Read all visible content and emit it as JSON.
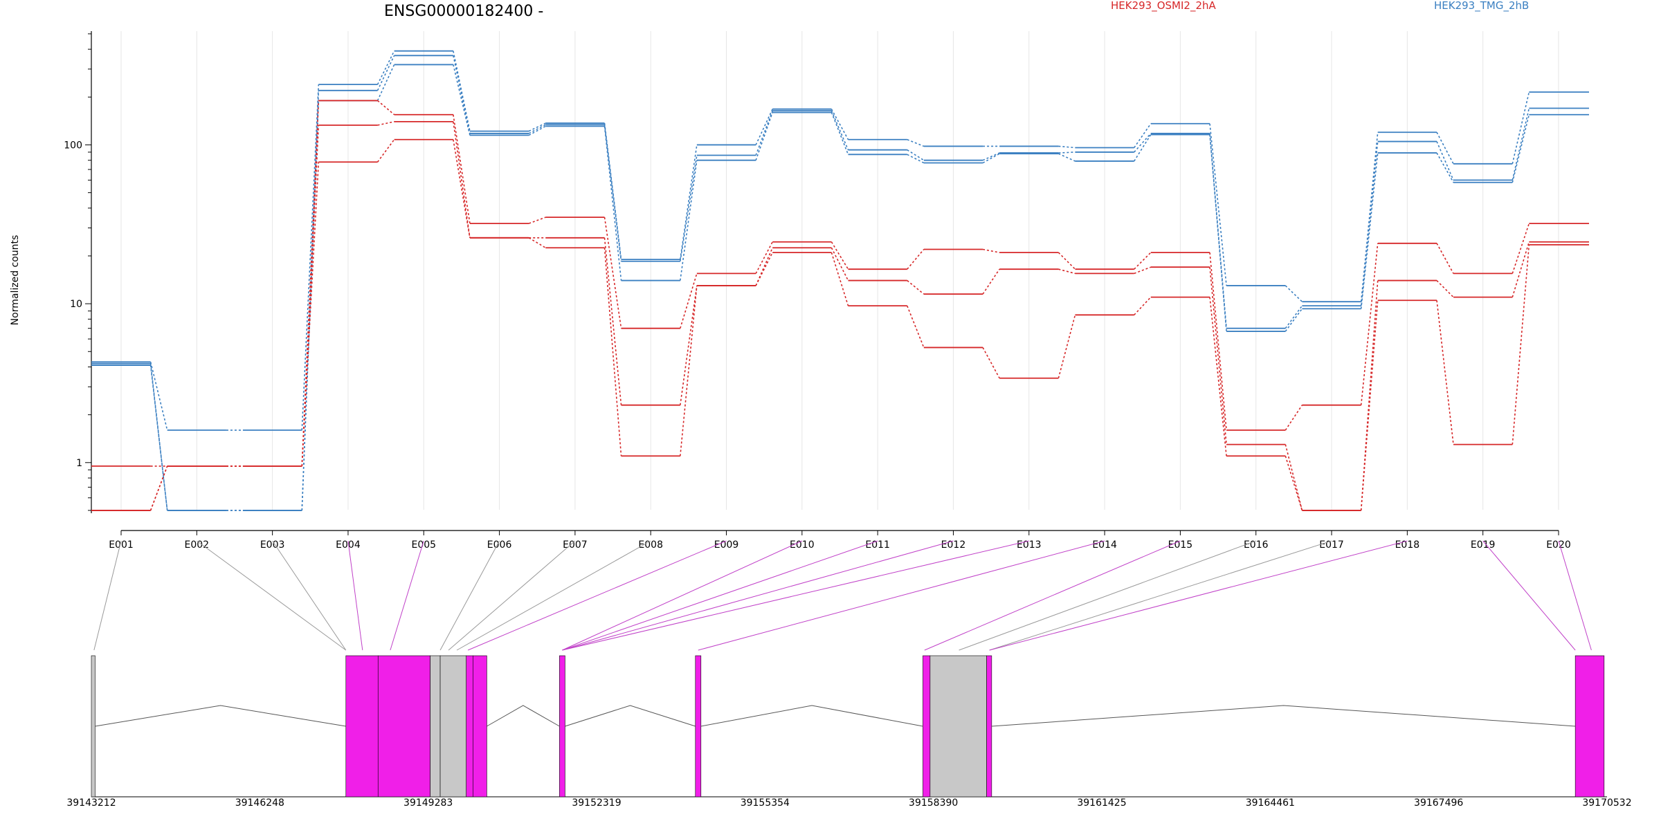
{
  "chart_data": {
    "type": "line",
    "title": "ENSG00000182400 -",
    "ylabel": "Normalized counts",
    "yscale": "log",
    "y_ticks": [
      1,
      10,
      100
    ],
    "y_tick_labels": [
      "1",
      "10",
      "100"
    ],
    "ylim": [
      0.48,
      520
    ],
    "categories": [
      "E001",
      "E002",
      "E003",
      "E004",
      "E005",
      "E006",
      "E007",
      "E008",
      "E009",
      "E010",
      "E011",
      "E012",
      "E013",
      "E014",
      "E015",
      "E016",
      "E017",
      "E018",
      "E019",
      "E020"
    ],
    "legend": [
      {
        "name": "HEK293_OSMI2_2hA",
        "color": "#d62728"
      },
      {
        "name": "HEK293_TMG_2hB",
        "color": "#3a7fc1"
      }
    ],
    "series": [
      {
        "group": "HEK293_TMG_2hB",
        "color": "#3a7fc1",
        "values": [
          4.3,
          1.6,
          1.6,
          240,
          390,
          122,
          137,
          19,
          100,
          168,
          108,
          98,
          98,
          96,
          136,
          13,
          10.3,
          120,
          76,
          215
        ]
      },
      {
        "group": "HEK293_TMG_2hB",
        "color": "#3a7fc1",
        "values": [
          4.2,
          0.5,
          0.5,
          220,
          365,
          118,
          134,
          18.5,
          86,
          164,
          93,
          80,
          89,
          90,
          118,
          7,
          9.7,
          105,
          60,
          170
        ]
      },
      {
        "group": "HEK293_TMG_2hB",
        "color": "#3a7fc1",
        "values": [
          4.1,
          0.5,
          0.5,
          190,
          320,
          115,
          131,
          14,
          80,
          160,
          87,
          77,
          88,
          79,
          116,
          6.7,
          9.3,
          89,
          58,
          155
        ]
      },
      {
        "group": "HEK293_OSMI2_2hA",
        "color": "#d62728",
        "values": [
          0.95,
          0.95,
          0.95,
          190,
          155,
          32,
          35,
          7,
          15.5,
          24.5,
          16.5,
          22,
          21,
          16.5,
          21,
          1.6,
          2.3,
          24,
          15.5,
          32
        ]
      },
      {
        "group": "HEK293_OSMI2_2hA",
        "color": "#d62728",
        "values": [
          0.5,
          0.95,
          0.95,
          133,
          140,
          26,
          26,
          2.3,
          13,
          22.5,
          14,
          11.5,
          16.5,
          15.5,
          17,
          1.3,
          0.5,
          14,
          11,
          24.5
        ]
      },
      {
        "group": "HEK293_OSMI2_2hA",
        "color": "#d62728",
        "values": [
          0.5,
          0.95,
          0.95,
          78,
          108,
          26,
          22.5,
          1.1,
          13,
          21,
          9.7,
          5.3,
          3.4,
          8.5,
          11,
          1.1,
          0.5,
          10.5,
          1.3,
          23.5
        ]
      }
    ],
    "gene_model": {
      "coord_ticks": [
        "39143212",
        "39146248",
        "39149283",
        "39152319",
        "39155354",
        "39158390",
        "39161425",
        "39164461",
        "39167496",
        "39170532"
      ],
      "coord_range": [
        39143212,
        39170532
      ],
      "intron_color": "#555555",
      "exon_colors": {
        "tested": "#f01fe8",
        "untested": "#c8c8c8"
      }
    }
  }
}
